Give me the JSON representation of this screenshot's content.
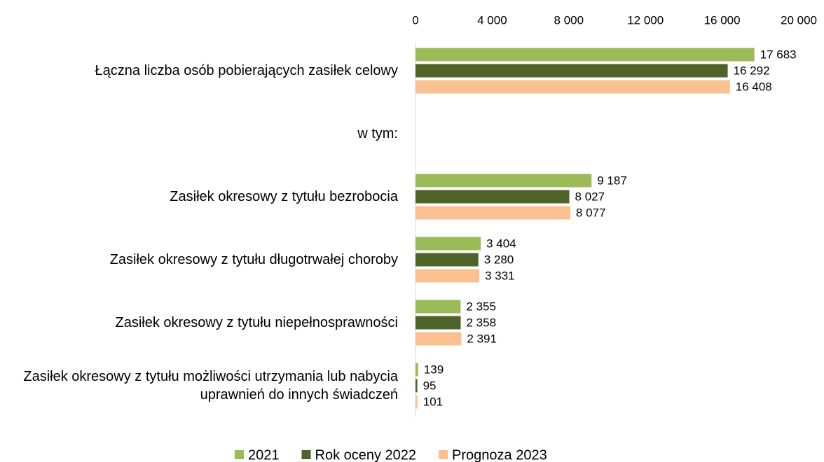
{
  "chart_data": {
    "type": "barh",
    "categories": [
      "Łączna liczba osób pobierających zasiłek celowy",
      "w tym:",
      "Zasiłek okresowy z tytułu bezrobocia",
      "Zasiłek okresowy z tytułu długotrwałej choroby",
      "Zasiłek okresowy z tytułu niepełnosprawności",
      "Zasiłek okresowy z tytułu możliwości utrzymania lub nabycia uprawnień do innych świadczeń"
    ],
    "series": [
      {
        "name": "2021",
        "color": "#9bbb59",
        "values": [
          17683,
          null,
          9187,
          3404,
          2355,
          139
        ],
        "value_labels": [
          "17 683",
          null,
          "9 187",
          "3 404",
          "2 355",
          "139"
        ]
      },
      {
        "name": "Rok oceny 2022",
        "color": "#4f6228",
        "values": [
          16292,
          null,
          8027,
          3280,
          2358,
          95
        ],
        "value_labels": [
          "16 292",
          null,
          "8 027",
          "3 280",
          "2 358",
          "95"
        ]
      },
      {
        "name": "Prognoza 2023",
        "color": "#fac090",
        "values": [
          16408,
          null,
          8077,
          3331,
          2391,
          101
        ],
        "value_labels": [
          "16 408",
          null,
          "8 077",
          "3 331",
          "2 391",
          "101"
        ]
      }
    ],
    "xlim": [
      0,
      20000
    ],
    "xticks": [
      0,
      {
        "value": 4000,
        "label": "4 000"
      },
      {
        "value": 8000,
        "label": "8 000"
      },
      {
        "value": 12000,
        "label": "12 000"
      },
      {
        "value": 16000,
        "label": "16 000"
      },
      {
        "value": 20000,
        "label": "20 000"
      }
    ],
    "legend": "bottom"
  }
}
